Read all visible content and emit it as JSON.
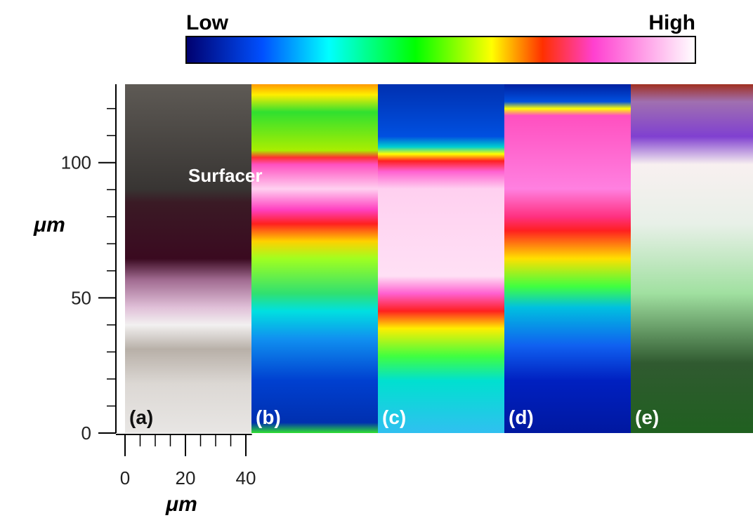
{
  "colorbar": {
    "low_label": "Low",
    "high_label": "High"
  },
  "panels": [
    {
      "label": "(a)",
      "annotation": "Surfacer"
    },
    {
      "label": "(b)"
    },
    {
      "label": "(c)"
    },
    {
      "label": "(d)"
    },
    {
      "label": "(e)"
    }
  ],
  "y_axis": {
    "label": "μm",
    "lim": [
      0,
      129
    ],
    "ticks": [
      0,
      50,
      100
    ],
    "minor_ticks": [
      10,
      20,
      30,
      40,
      60,
      70,
      80,
      90,
      110,
      120
    ]
  },
  "x_axis": {
    "label": "μm",
    "lim": [
      0,
      42
    ],
    "ticks": [
      0,
      20,
      40
    ],
    "minor_ticks": [
      5,
      10,
      15,
      25,
      30,
      35
    ]
  }
}
